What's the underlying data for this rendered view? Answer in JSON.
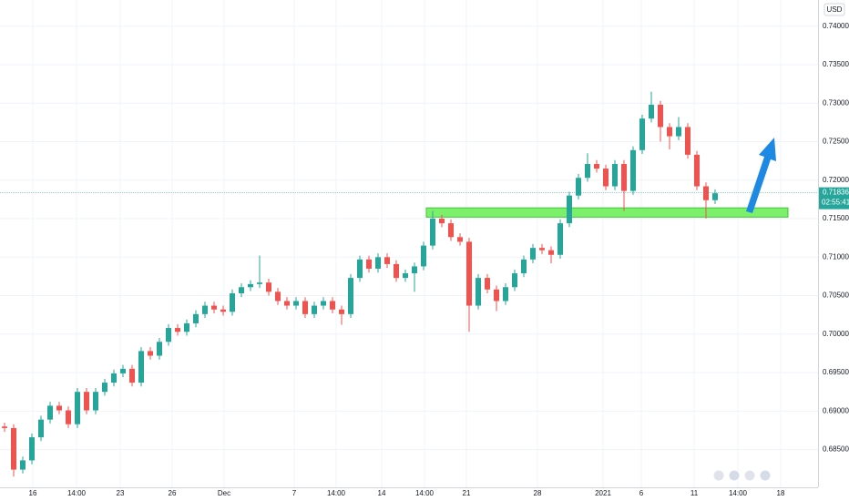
{
  "chart_data": {
    "type": "candlestick",
    "currency": "USD",
    "up_color": "#26a69a",
    "down_color": "#ef5350",
    "open": [
      0.688,
      0.6878,
      0.6824,
      0.6836,
      0.6866,
      0.6889,
      0.6907,
      0.6901,
      0.6883,
      0.6925,
      0.6901,
      0.6925,
      0.6937,
      0.6949,
      0.6955,
      0.6937,
      0.6978,
      0.6972,
      0.699,
      0.7008,
      0.7003,
      0.7014,
      0.7026,
      0.7037,
      0.7032,
      0.7029,
      0.7053,
      0.7061,
      0.7065,
      0.7067,
      0.7055,
      0.7043,
      0.7037,
      0.7043,
      0.7026,
      0.7037,
      0.7043,
      0.7032,
      0.7026,
      0.7073,
      0.7097,
      0.7085,
      0.71,
      0.7091,
      0.7073,
      0.7079,
      0.7088,
      0.7115,
      0.715,
      0.7144,
      0.7126,
      0.712,
      0.7037,
      0.7073,
      0.7058,
      0.7043,
      0.7061,
      0.7079,
      0.7097,
      0.7112,
      0.7109,
      0.7103,
      0.7144,
      0.718,
      0.7203,
      0.7221,
      0.7215,
      0.7192,
      0.7221,
      0.7186,
      0.7239,
      0.728,
      0.7298,
      0.7269,
      0.7257,
      0.7269,
      0.7233,
      0.7192,
      0.7174
    ],
    "high": [
      0.6885,
      0.6883,
      0.6841,
      0.6871,
      0.6894,
      0.6912,
      0.6912,
      0.6906,
      0.693,
      0.693,
      0.693,
      0.6942,
      0.6954,
      0.696,
      0.696,
      0.6983,
      0.6983,
      0.6995,
      0.7013,
      0.7013,
      0.7019,
      0.7031,
      0.7042,
      0.7042,
      0.7037,
      0.7058,
      0.7066,
      0.707,
      0.7102,
      0.7072,
      0.706,
      0.7048,
      0.7048,
      0.7048,
      0.7042,
      0.7048,
      0.7048,
      0.7037,
      0.7078,
      0.7102,
      0.7102,
      0.7105,
      0.7105,
      0.7096,
      0.7084,
      0.7093,
      0.712,
      0.716,
      0.7155,
      0.7149,
      0.7131,
      0.7125,
      0.7078,
      0.7078,
      0.7063,
      0.7066,
      0.7084,
      0.7102,
      0.7117,
      0.7117,
      0.7114,
      0.7149,
      0.7185,
      0.7208,
      0.7235,
      0.7226,
      0.722,
      0.7226,
      0.7226,
      0.7244,
      0.7285,
      0.7315,
      0.7303,
      0.7274,
      0.7282,
      0.7274,
      0.7238,
      0.7197,
      0.7188
    ],
    "low": [
      0.6873,
      0.6815,
      0.6819,
      0.6831,
      0.6861,
      0.6884,
      0.6896,
      0.6878,
      0.6878,
      0.6896,
      0.6896,
      0.692,
      0.6932,
      0.6944,
      0.6932,
      0.6932,
      0.6967,
      0.6967,
      0.6985,
      0.6998,
      0.6998,
      0.7009,
      0.7021,
      0.7027,
      0.7024,
      0.7024,
      0.7048,
      0.7056,
      0.706,
      0.705,
      0.7038,
      0.7032,
      0.7032,
      0.7021,
      0.7021,
      0.7032,
      0.7027,
      0.7012,
      0.7021,
      0.7068,
      0.708,
      0.708,
      0.7086,
      0.7068,
      0.7068,
      0.7055,
      0.7083,
      0.711,
      0.7139,
      0.7121,
      0.7115,
      0.7003,
      0.7032,
      0.7053,
      0.703,
      0.7038,
      0.7056,
      0.7074,
      0.7092,
      0.7104,
      0.7092,
      0.7098,
      0.7139,
      0.7175,
      0.7198,
      0.721,
      0.7187,
      0.7187,
      0.716,
      0.7181,
      0.7234,
      0.7275,
      0.725,
      0.724,
      0.7252,
      0.7228,
      0.7187,
      0.715,
      0.7169
    ],
    "close": [
      0.6878,
      0.6824,
      0.6836,
      0.6866,
      0.6889,
      0.6907,
      0.6901,
      0.6883,
      0.6925,
      0.6901,
      0.6925,
      0.6937,
      0.6949,
      0.6955,
      0.6937,
      0.6978,
      0.6972,
      0.699,
      0.7008,
      0.7003,
      0.7014,
      0.7026,
      0.7037,
      0.7032,
      0.7029,
      0.7053,
      0.7061,
      0.7065,
      0.7067,
      0.7055,
      0.7043,
      0.7037,
      0.7043,
      0.7026,
      0.7037,
      0.7043,
      0.7032,
      0.7026,
      0.7073,
      0.7097,
      0.7085,
      0.71,
      0.7091,
      0.7073,
      0.7079,
      0.7088,
      0.7115,
      0.715,
      0.7144,
      0.7126,
      0.712,
      0.7037,
      0.7073,
      0.7058,
      0.7043,
      0.7061,
      0.7079,
      0.7097,
      0.7112,
      0.7109,
      0.7103,
      0.7144,
      0.718,
      0.7203,
      0.7221,
      0.7215,
      0.7192,
      0.7221,
      0.7186,
      0.7239,
      0.728,
      0.7298,
      0.7269,
      0.7257,
      0.7269,
      0.7233,
      0.7192,
      0.7174,
      0.7183
    ],
    "xlim": [
      -0.5,
      89.3
    ],
    "xticks": [
      {
        "value": 3.1,
        "label": "16"
      },
      {
        "value": 7.9,
        "label": "14:00"
      },
      {
        "value": 12.7,
        "label": "23"
      },
      {
        "value": 18.4,
        "label": "26"
      },
      {
        "value": 24.1,
        "label": "Dec"
      },
      {
        "value": 31.8,
        "label": "7"
      },
      {
        "value": 36.4,
        "label": "14:00"
      },
      {
        "value": 41.4,
        "label": "14"
      },
      {
        "value": 46.1,
        "label": "14:00"
      },
      {
        "value": 50.7,
        "label": "21"
      },
      {
        "value": 58.5,
        "label": "28"
      },
      {
        "value": 65.7,
        "label": "2021"
      },
      {
        "value": 69.9,
        "label": "6"
      },
      {
        "value": 75.7,
        "label": "11"
      },
      {
        "value": 80.5,
        "label": "14:00"
      },
      {
        "value": 85.2,
        "label": "18"
      }
    ],
    "ylim": [
      0.6801,
      0.7434
    ],
    "yticks": [
      {
        "value": 0.685,
        "label": "0.68500"
      },
      {
        "value": 0.69,
        "label": "0.69000"
      },
      {
        "value": 0.695,
        "label": "0.69500"
      },
      {
        "value": 0.7,
        "label": "0.70000"
      },
      {
        "value": 0.705,
        "label": "0.70500"
      },
      {
        "value": 0.71,
        "label": "0.71000"
      },
      {
        "value": 0.715,
        "label": "0.71500"
      },
      {
        "value": 0.72,
        "label": "0.72000"
      },
      {
        "value": 0.725,
        "label": "0.72500"
      },
      {
        "value": 0.73,
        "label": "0.73000"
      },
      {
        "value": 0.735,
        "label": "0.73500"
      },
      {
        "value": 0.74,
        "label": "0.74000"
      }
    ],
    "grid": true,
    "last_price": {
      "value": 0.71836,
      "label": "0.71836"
    },
    "countdown": "02:55:41",
    "support_zone": [
      0.7152,
      0.7164
    ]
  }
}
